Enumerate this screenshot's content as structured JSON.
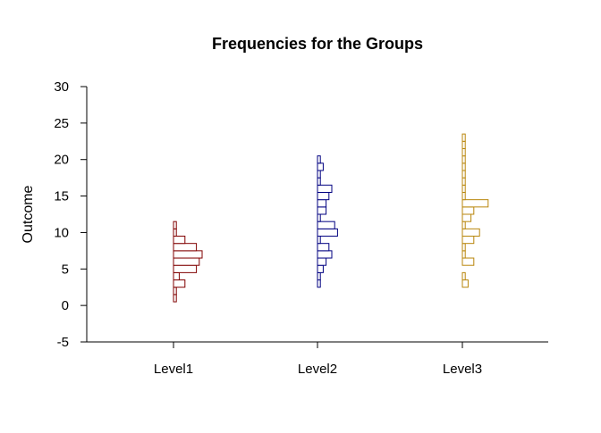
{
  "chart_data": {
    "type": "bar",
    "title": "Frequencies for the Groups",
    "ylabel": "Outcome",
    "xlabel": "",
    "ylim": [
      -5,
      30
    ],
    "yticks": [
      -5,
      0,
      5,
      10,
      15,
      20,
      25,
      30
    ],
    "categories": [
      "Level1",
      "Level2",
      "Level3"
    ],
    "grid": false,
    "legend": "none",
    "orientation": "horizontal-histograms",
    "series": [
      {
        "category": "Level1",
        "color": "#800000",
        "bin_width": 1,
        "bins": [
          {
            "y": 1,
            "count": 1
          },
          {
            "y": 2,
            "count": 1
          },
          {
            "y": 3,
            "count": 4
          },
          {
            "y": 4,
            "count": 2
          },
          {
            "y": 5,
            "count": 8
          },
          {
            "y": 6,
            "count": 9
          },
          {
            "y": 7,
            "count": 10
          },
          {
            "y": 8,
            "count": 8
          },
          {
            "y": 9,
            "count": 4
          },
          {
            "y": 10,
            "count": 1
          },
          {
            "y": 11,
            "count": 1
          }
        ]
      },
      {
        "category": "Level2",
        "color": "#000080",
        "bin_width": 1,
        "bins": [
          {
            "y": 3,
            "count": 1
          },
          {
            "y": 4,
            "count": 1
          },
          {
            "y": 5,
            "count": 2
          },
          {
            "y": 6,
            "count": 3
          },
          {
            "y": 7,
            "count": 5
          },
          {
            "y": 8,
            "count": 4
          },
          {
            "y": 9,
            "count": 1
          },
          {
            "y": 10,
            "count": 7
          },
          {
            "y": 11,
            "count": 6
          },
          {
            "y": 12,
            "count": 1
          },
          {
            "y": 13,
            "count": 3
          },
          {
            "y": 14,
            "count": 3
          },
          {
            "y": 15,
            "count": 4
          },
          {
            "y": 16,
            "count": 5
          },
          {
            "y": 17,
            "count": 1
          },
          {
            "y": 18,
            "count": 1
          },
          {
            "y": 19,
            "count": 2
          },
          {
            "y": 20,
            "count": 1
          }
        ]
      },
      {
        "category": "Level3",
        "color": "#b8860b",
        "bin_width": 1,
        "bins": [
          {
            "y": 3,
            "count": 2
          },
          {
            "y": 4,
            "count": 1
          },
          {
            "y": 6,
            "count": 4
          },
          {
            "y": 7,
            "count": 1
          },
          {
            "y": 8,
            "count": 1
          },
          {
            "y": 9,
            "count": 4
          },
          {
            "y": 10,
            "count": 6
          },
          {
            "y": 11,
            "count": 1
          },
          {
            "y": 12,
            "count": 3
          },
          {
            "y": 13,
            "count": 4
          },
          {
            "y": 14,
            "count": 9
          },
          {
            "y": 15,
            "count": 1
          },
          {
            "y": 16,
            "count": 1
          },
          {
            "y": 17,
            "count": 1
          },
          {
            "y": 18,
            "count": 1
          },
          {
            "y": 19,
            "count": 1
          },
          {
            "y": 20,
            "count": 1
          },
          {
            "y": 21,
            "count": 1
          },
          {
            "y": 22,
            "count": 1
          },
          {
            "y": 23,
            "count": 1
          }
        ]
      }
    ]
  }
}
